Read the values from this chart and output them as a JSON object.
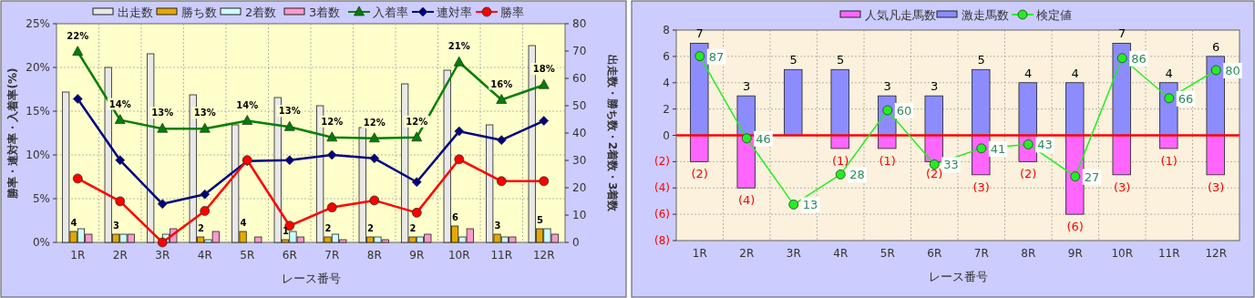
{
  "chart_data": [
    {
      "type": "bar",
      "categories": [
        "1R",
        "2R",
        "3R",
        "4R",
        "5R",
        "6R",
        "7R",
        "8R",
        "9R",
        "10R",
        "11R",
        "12R"
      ],
      "xlabel": "レース番号",
      "ylabel": "勝率・連対率・入着率(%)",
      "y2label": "出走数・勝ち数・2着数・3着数",
      "ylim": [
        0,
        25
      ],
      "yticks": [
        {
          "value": 0,
          "label": "0%"
        },
        {
          "value": 5,
          "label": "5%"
        },
        {
          "value": 10,
          "label": "10%"
        },
        {
          "value": 15,
          "label": "15%"
        },
        {
          "value": 20,
          "label": "20%"
        },
        {
          "value": 25,
          "label": "25%"
        }
      ],
      "y2lim": [
        0,
        80
      ],
      "y2ticks": [
        0,
        10,
        20,
        30,
        40,
        50,
        60,
        70,
        80
      ],
      "grid": true,
      "legend": "top",
      "series": [
        {
          "name": "出走数",
          "axis": "y2",
          "color": "#e8e8e8",
          "values": [
            55,
            64,
            69,
            54,
            43,
            53,
            50,
            42,
            58,
            63,
            43,
            72
          ]
        },
        {
          "name": "勝ち数",
          "axis": "y2",
          "color": "#e6a800",
          "values": [
            4,
            3,
            0,
            2,
            4,
            1,
            2,
            2,
            2,
            6,
            3,
            5
          ],
          "value_labels": [
            "4",
            "3",
            null,
            "2",
            "4",
            "1",
            "2",
            "2",
            "2",
            "6",
            "3",
            "5"
          ]
        },
        {
          "name": "2着数",
          "axis": "y2",
          "color": "#ccffff",
          "values": [
            5,
            3,
            3,
            1,
            0,
            4,
            3,
            2,
            2,
            2,
            2,
            5
          ]
        },
        {
          "name": "3着数",
          "axis": "y2",
          "color": "#ff99cc",
          "values": [
            3,
            3,
            5,
            4,
            2,
            2,
            1,
            1,
            3,
            5,
            2,
            3
          ]
        },
        {
          "name": "入着率",
          "type": "line",
          "marker": "triangle",
          "color": "#008000",
          "values": [
            21.8,
            14.0,
            13.0,
            13.0,
            13.9,
            13.2,
            12.0,
            11.9,
            12.0,
            20.6,
            16.3,
            18.0
          ],
          "value_labels": [
            "22%",
            "14%",
            "13%",
            "13%",
            "14%",
            "13%",
            "12%",
            "12%",
            "12%",
            "21%",
            "16%",
            "18%"
          ]
        },
        {
          "name": "連対率",
          "type": "line",
          "marker": "diamond",
          "color": "#000080",
          "values": [
            16.4,
            9.4,
            4.4,
            5.5,
            9.3,
            9.4,
            10.0,
            9.6,
            6.9,
            12.7,
            11.7,
            13.9
          ]
        },
        {
          "name": "勝率",
          "type": "line",
          "marker": "circle",
          "color": "#ff0000",
          "values": [
            7.3,
            4.7,
            0,
            3.6,
            9.4,
            1.9,
            4.0,
            4.8,
            3.4,
            9.5,
            7.0,
            7.0
          ]
        }
      ]
    },
    {
      "type": "bar",
      "categories": [
        "1R",
        "2R",
        "3R",
        "4R",
        "5R",
        "6R",
        "7R",
        "8R",
        "9R",
        "10R",
        "11R",
        "12R"
      ],
      "xlabel": "レース番号",
      "ylim": [
        -8,
        8
      ],
      "yticks": [
        {
          "value": -8,
          "label": "(8)"
        },
        {
          "value": -6,
          "label": "(6)"
        },
        {
          "value": -4,
          "label": "(4)"
        },
        {
          "value": -2,
          "label": "(2)"
        },
        0,
        2,
        4,
        6,
        8
      ],
      "y2lim": [
        -5,
        100
      ],
      "grid": true,
      "legend": "top",
      "stacked": true,
      "ref_lines": [
        {
          "axis": "y",
          "value": 0,
          "color": "#ff0000"
        }
      ],
      "series": [
        {
          "name": "人気凡走馬数",
          "color": "#ff66ff",
          "values": [
            -2,
            -4,
            0,
            -1,
            -1,
            -2,
            -3,
            -2,
            -6,
            -3,
            -1,
            -3
          ],
          "value_labels": [
            "(2)",
            "(4)",
            null,
            "(1)",
            "(1)",
            "(2)",
            "(3)",
            "(2)",
            "(6)",
            "(3)",
            "(1)",
            "(3)"
          ]
        },
        {
          "name": "激走馬数",
          "color": "#8c8cff",
          "values": [
            7,
            3,
            5,
            5,
            3,
            3,
            5,
            4,
            4,
            7,
            4,
            6
          ],
          "value_labels": [
            "7",
            "3",
            "5",
            "5",
            "3",
            "3",
            "5",
            "4",
            "4",
            "7",
            "4",
            "6"
          ]
        },
        {
          "name": "検定値",
          "type": "line",
          "axis": "y2",
          "marker": "circle",
          "color": "#22ee22",
          "values": [
            87,
            46,
            13,
            28,
            60,
            33,
            41,
            43,
            27,
            86,
            66,
            80
          ],
          "value_labels": [
            "87",
            "46",
            "13",
            "28",
            "60",
            "33",
            "41",
            "43",
            "27",
            "86",
            "66",
            "80"
          ]
        }
      ]
    }
  ]
}
